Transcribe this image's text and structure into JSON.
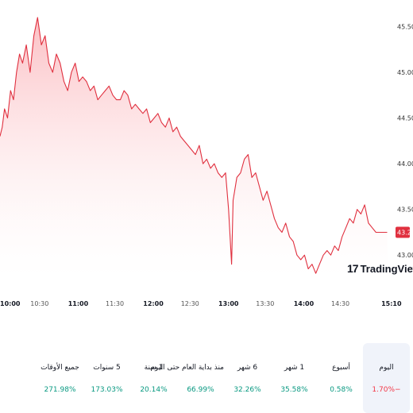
{
  "colors": {
    "line": "#e0303f",
    "fill_top": "#fbb8bd",
    "fill_bottom": "#ffffff",
    "positive": "#089981",
    "negative": "#f23645",
    "price_tag": "#e0303f",
    "active_bg": "#f0f3fa"
  },
  "chart_data": {
    "type": "area",
    "y_ticks": [
      "45.50",
      "45.00",
      "44.50",
      "44.00",
      "43.50",
      "43.00"
    ],
    "x_ticks": [
      {
        "label": "10:00",
        "bold": true
      },
      {
        "label": "10:30",
        "bold": false
      },
      {
        "label": "11:00",
        "bold": true
      },
      {
        "label": "11:30",
        "bold": false
      },
      {
        "label": "12:00",
        "bold": true
      },
      {
        "label": "12:30",
        "bold": false
      },
      {
        "label": "13:00",
        "bold": true
      },
      {
        "label": "13:30",
        "bold": false
      },
      {
        "label": "14:00",
        "bold": true
      },
      {
        "label": "14:30",
        "bold": false
      },
      {
        "label": "15:10",
        "bold": true
      }
    ],
    "ylim": [
      42.75,
      45.6
    ],
    "xlim": [
      10.0,
      15.25
    ],
    "x": [
      10.0,
      10.03,
      10.06,
      10.1,
      10.14,
      10.18,
      10.22,
      10.26,
      10.3,
      10.35,
      10.4,
      10.45,
      10.5,
      10.55,
      10.6,
      10.65,
      10.7,
      10.75,
      10.8,
      10.85,
      10.9,
      10.95,
      11.0,
      11.05,
      11.1,
      11.15,
      11.2,
      11.25,
      11.3,
      11.35,
      11.4,
      11.45,
      11.5,
      11.55,
      11.6,
      11.65,
      11.7,
      11.75,
      11.8,
      11.85,
      11.9,
      11.95,
      12.0,
      12.05,
      12.1,
      12.15,
      12.2,
      12.25,
      12.3,
      12.35,
      12.4,
      12.45,
      12.5,
      12.55,
      12.6,
      12.65,
      12.7,
      12.75,
      12.8,
      12.85,
      12.9,
      12.95,
      13.0,
      13.04,
      13.08,
      13.1,
      13.12,
      13.15,
      13.2,
      13.25,
      13.3,
      13.35,
      13.4,
      13.45,
      13.5,
      13.55,
      13.6,
      13.65,
      13.7,
      13.75,
      13.8,
      13.85,
      13.9,
      13.95,
      14.0,
      14.05,
      14.1,
      14.15,
      14.2,
      14.25,
      14.3,
      14.35,
      14.4,
      14.45,
      14.5,
      14.55,
      14.6,
      14.65,
      14.7,
      14.75,
      14.8,
      14.85,
      14.9,
      14.95,
      15.0,
      15.05,
      15.1,
      15.15
    ],
    "y": [
      44.3,
      44.4,
      44.6,
      44.5,
      44.8,
      44.7,
      45.0,
      45.2,
      45.1,
      45.3,
      45.0,
      45.4,
      45.6,
      45.3,
      45.4,
      45.1,
      45.0,
      45.2,
      45.1,
      44.9,
      44.8,
      45.0,
      45.1,
      44.9,
      44.95,
      44.9,
      44.8,
      44.85,
      44.7,
      44.75,
      44.8,
      44.85,
      44.75,
      44.7,
      44.7,
      44.8,
      44.75,
      44.6,
      44.65,
      44.6,
      44.55,
      44.6,
      44.45,
      44.5,
      44.55,
      44.45,
      44.4,
      44.5,
      44.35,
      44.4,
      44.3,
      44.25,
      44.2,
      44.15,
      44.1,
      44.2,
      44.0,
      44.05,
      43.95,
      44.0,
      43.9,
      43.85,
      43.9,
      43.5,
      42.9,
      43.6,
      43.7,
      43.85,
      43.9,
      44.05,
      44.1,
      43.85,
      43.9,
      43.75,
      43.6,
      43.7,
      43.55,
      43.4,
      43.3,
      43.25,
      43.35,
      43.2,
      43.15,
      43.0,
      42.95,
      43.0,
      42.85,
      42.9,
      42.8,
      42.9,
      43.0,
      43.05,
      43.0,
      43.1,
      43.05,
      43.2,
      43.3,
      43.4,
      43.35,
      43.5,
      43.45,
      43.55,
      43.35,
      43.3,
      43.25,
      43.25,
      43.25,
      43.25
    ],
    "last_price": "43.25"
  },
  "periods": [
    {
      "label": "جميع الأوقات",
      "value": "271.98%",
      "sign": "pos"
    },
    {
      "label": "5 سنوات",
      "value": "173.03%",
      "sign": "pos"
    },
    {
      "label": "1 سنة",
      "value": "20.14%",
      "sign": "pos"
    },
    {
      "label": "منذ بداية العام حتى اليوم",
      "value": "66.99%",
      "sign": "pos"
    },
    {
      "label": "6 شهر",
      "value": "32.26%",
      "sign": "pos"
    },
    {
      "label": "1 شهر",
      "value": "35.58%",
      "sign": "pos"
    },
    {
      "label": "أسبوع",
      "value": "0.58%",
      "sign": "pos"
    },
    {
      "label": "اليوم",
      "value": "1.70%−",
      "sign": "neg"
    }
  ],
  "logo": {
    "text": "TradingView",
    "mark": "17"
  }
}
